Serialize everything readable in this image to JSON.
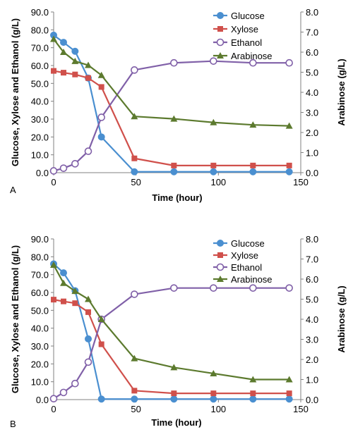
{
  "chart_data": [
    {
      "type": "line",
      "panel_label": "A",
      "xlabel": "Time (hour)",
      "ylabel": "Glucose, Xylose and Ethanol (g/L)",
      "y2label": "Arabinose (g/L)",
      "xlim": [
        0,
        150
      ],
      "xticks": [
        "0",
        "50",
        "100",
        "150"
      ],
      "ylim": [
        0,
        90
      ],
      "yticks": [
        "0.0",
        "10.0",
        "20.0",
        "30.0",
        "40.0",
        "50.0",
        "60.0",
        "70.0",
        "80.0",
        "90.0"
      ],
      "y2lim": [
        0,
        8
      ],
      "y2ticks": [
        "0.0",
        "1.0",
        "2.0",
        "3.0",
        "4.0",
        "5.0",
        "6.0",
        "7.0",
        "8.0"
      ],
      "legend_position": "top-right",
      "series": [
        {
          "name": "Glucose",
          "axis": "left",
          "marker": "circle",
          "color": "#4a8fd0",
          "x": [
            0,
            6,
            13,
            21,
            29,
            49,
            73,
            97,
            121,
            143
          ],
          "y": [
            77,
            73,
            68,
            53,
            20,
            0.5,
            0.5,
            0.5,
            0.5,
            0.5
          ]
        },
        {
          "name": "Xylose",
          "axis": "left",
          "marker": "square",
          "color": "#d0504b",
          "x": [
            0,
            6,
            13,
            21,
            29,
            49,
            73,
            97,
            121,
            143
          ],
          "y": [
            57,
            56,
            55,
            53,
            48,
            8,
            4,
            4,
            4,
            4
          ]
        },
        {
          "name": "Ethanol",
          "axis": "left",
          "marker": "circle-open",
          "color": "#8060a8",
          "x": [
            0,
            6,
            13,
            21,
            29,
            49,
            73,
            97,
            121,
            143
          ],
          "y": [
            1,
            2.5,
            5,
            12,
            31,
            57.5,
            61.5,
            62.5,
            61.5,
            61.5
          ]
        },
        {
          "name": "Arabinose",
          "axis": "right",
          "marker": "triangle",
          "color": "#5c7a2e",
          "x": [
            0,
            6,
            13,
            21,
            29,
            49,
            73,
            97,
            121,
            143
          ],
          "y": [
            6.65,
            6.0,
            5.55,
            5.35,
            4.85,
            2.8,
            2.68,
            2.5,
            2.38,
            2.33
          ]
        }
      ]
    },
    {
      "type": "line",
      "panel_label": "B",
      "xlabel": "Time (hour)",
      "ylabel": "Glucose, Xylose and Ethanol (g/L)",
      "y2label": "Arabinose (g/L)",
      "xlim": [
        0,
        150
      ],
      "xticks": [
        "0",
        "50",
        "100",
        "150"
      ],
      "ylim": [
        0,
        90
      ],
      "yticks": [
        "0.0",
        "10.0",
        "20.0",
        "30.0",
        "40.0",
        "50.0",
        "60.0",
        "70.0",
        "80.0",
        "90.0"
      ],
      "y2lim": [
        0,
        8
      ],
      "y2ticks": [
        "0.0",
        "1.0",
        "2.0",
        "3.0",
        "4.0",
        "5.0",
        "6.0",
        "7.0",
        "8.0"
      ],
      "legend_position": "top-right",
      "series": [
        {
          "name": "Glucose",
          "axis": "left",
          "marker": "circle",
          "color": "#4a8fd0",
          "x": [
            0,
            6,
            13,
            21,
            29,
            49,
            73,
            97,
            121,
            143
          ],
          "y": [
            76,
            71,
            61,
            34,
            0.3,
            0.3,
            0.3,
            0.3,
            0.3,
            0.3
          ]
        },
        {
          "name": "Xylose",
          "axis": "left",
          "marker": "square",
          "color": "#d0504b",
          "x": [
            0,
            6,
            13,
            21,
            29,
            49,
            73,
            97,
            121,
            143
          ],
          "y": [
            56,
            55,
            54,
            49,
            31,
            5,
            3.5,
            3.5,
            3.5,
            3.5
          ]
        },
        {
          "name": "Ethanol",
          "axis": "left",
          "marker": "circle-open",
          "color": "#8060a8",
          "x": [
            0,
            6,
            13,
            21,
            29,
            49,
            73,
            97,
            121,
            143
          ],
          "y": [
            0.5,
            4,
            9,
            21,
            45,
            59,
            62.5,
            62.5,
            62.5,
            62.5
          ]
        },
        {
          "name": "Arabinose",
          "axis": "right",
          "marker": "triangle",
          "color": "#5c7a2e",
          "x": [
            0,
            6,
            13,
            21,
            29,
            49,
            73,
            97,
            121,
            143
          ],
          "y": [
            6.7,
            5.8,
            5.4,
            5.0,
            4.0,
            2.05,
            1.6,
            1.3,
            1.0,
            1.0
          ]
        }
      ]
    }
  ]
}
